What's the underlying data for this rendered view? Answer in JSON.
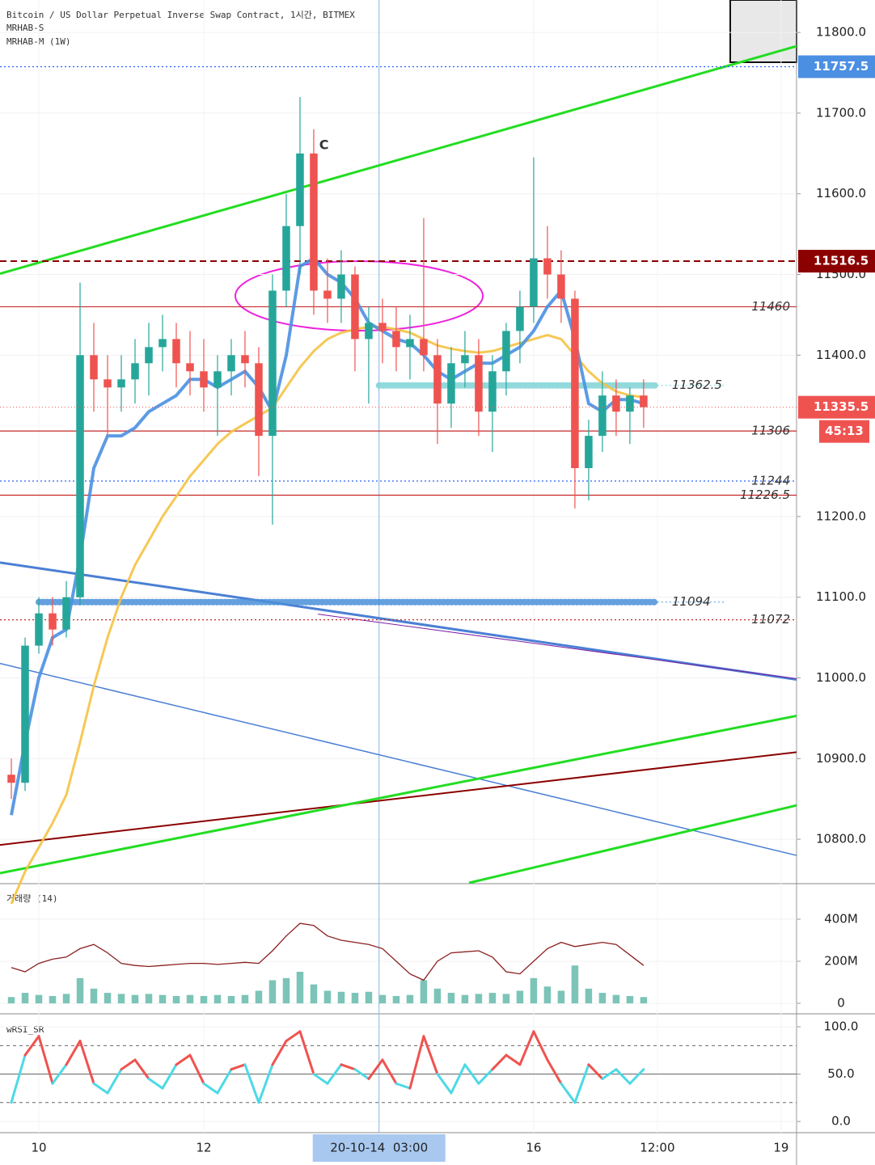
{
  "chart_data": [
    {
      "type": "candlestick",
      "title": "Bitcoin / US Dollar Perpetual Inverse Swap Contract, 1시간, BITMEX",
      "indicators": [
        "MRHAB-S",
        "MRHAB-M (1W)"
      ],
      "x": [
        -8,
        -4,
        0,
        4,
        8,
        12,
        16,
        20,
        24,
        28,
        32,
        36,
        40,
        44,
        48,
        52,
        56,
        60,
        64,
        68,
        72,
        76,
        80,
        84,
        88,
        92,
        96,
        100,
        104,
        108,
        112,
        116,
        120,
        124,
        128,
        132,
        136,
        140,
        144,
        148,
        152,
        156,
        160,
        164,
        168,
        172,
        176
      ],
      "ohlc": [
        [
          10880,
          10900,
          10850,
          10870
        ],
        [
          10870,
          11050,
          10860,
          11040
        ],
        [
          11040,
          11100,
          11030,
          11080
        ],
        [
          11080,
          11100,
          11040,
          11060
        ],
        [
          11060,
          11120,
          11050,
          11100
        ],
        [
          11100,
          11490,
          11090,
          11400
        ],
        [
          11400,
          11440,
          11330,
          11370
        ],
        [
          11370,
          11400,
          11300,
          11360
        ],
        [
          11360,
          11400,
          11330,
          11370
        ],
        [
          11370,
          11420,
          11340,
          11390
        ],
        [
          11390,
          11440,
          11350,
          11410
        ],
        [
          11410,
          11450,
          11380,
          11420
        ],
        [
          11420,
          11440,
          11360,
          11390
        ],
        [
          11390,
          11430,
          11350,
          11380
        ],
        [
          11380,
          11420,
          11330,
          11360
        ],
        [
          11360,
          11400,
          11300,
          11380
        ],
        [
          11380,
          11420,
          11350,
          11400
        ],
        [
          11400,
          11430,
          11360,
          11390
        ],
        [
          11390,
          11410,
          11250,
          11300
        ],
        [
          11300,
          11500,
          11190,
          11480
        ],
        [
          11480,
          11600,
          11460,
          11560
        ],
        [
          11560,
          11720,
          11500,
          11650
        ],
        [
          11650,
          11680,
          11450,
          11480
        ],
        [
          11480,
          11520,
          11440,
          11470
        ],
        [
          11470,
          11530,
          11440,
          11500
        ],
        [
          11500,
          11510,
          11380,
          11420
        ],
        [
          11420,
          11460,
          11340,
          11440
        ],
        [
          11440,
          11470,
          11390,
          11430
        ],
        [
          11430,
          11460,
          11380,
          11410
        ],
        [
          11410,
          11450,
          11370,
          11420
        ],
        [
          11420,
          11570,
          11380,
          11400
        ],
        [
          11400,
          11420,
          11290,
          11340
        ],
        [
          11340,
          11410,
          11310,
          11390
        ],
        [
          11390,
          11430,
          11360,
          11400
        ],
        [
          11400,
          11420,
          11300,
          11330
        ],
        [
          11330,
          11400,
          11280,
          11380
        ],
        [
          11380,
          11440,
          11350,
          11430
        ],
        [
          11430,
          11480,
          11390,
          11460
        ],
        [
          11460,
          11645,
          11440,
          11520
        ],
        [
          11520,
          11560,
          11470,
          11500
        ],
        [
          11500,
          11530,
          11440,
          11470
        ],
        [
          11470,
          11480,
          11210,
          11260
        ],
        [
          11260,
          11320,
          11220,
          11300
        ],
        [
          11300,
          11380,
          11280,
          11350
        ],
        [
          11350,
          11370,
          11300,
          11330
        ],
        [
          11330,
          11360,
          11290,
          11350
        ],
        [
          11350,
          11370,
          11310,
          11335.5
        ]
      ],
      "up_color": "#26a69a",
      "down_color": "#ef5350",
      "series": [
        {
          "color": "#f5c242",
          "width": 3,
          "values": [
            10720,
            10760,
            10790,
            10820,
            10855,
            10920,
            10990,
            11050,
            11100,
            11140,
            11170,
            11200,
            11225,
            11250,
            11270,
            11290,
            11305,
            11315,
            11325,
            11335,
            11360,
            11385,
            11405,
            11420,
            11428,
            11432,
            11435,
            11435,
            11432,
            11428,
            11420,
            11412,
            11408,
            11405,
            11403,
            11405,
            11410,
            11415,
            11420,
            11425,
            11420,
            11400,
            11380,
            11365,
            11355,
            11350,
            11348
          ]
        },
        {
          "color": "#4a90e2",
          "width": 4,
          "values": [
            10830,
            10920,
            11000,
            11050,
            11060,
            11150,
            11260,
            11300,
            11300,
            11310,
            11330,
            11340,
            11350,
            11370,
            11370,
            11360,
            11370,
            11380,
            11360,
            11330,
            11400,
            11510,
            11520,
            11500,
            11490,
            11470,
            11440,
            11430,
            11420,
            11415,
            11400,
            11380,
            11370,
            11380,
            11390,
            11390,
            11400,
            11410,
            11430,
            11460,
            11480,
            11420,
            11340,
            11330,
            11345,
            11345,
            11340
          ]
        }
      ],
      "xlim": [
        -11.3,
        220.5
      ],
      "xticks": [
        {
          "value": 0,
          "label": "10"
        },
        {
          "value": 48,
          "label": "12"
        },
        {
          "value": 144,
          "label": "16"
        },
        {
          "value": 180,
          "label": "12:00"
        },
        {
          "value": 216,
          "label": "19"
        }
      ],
      "crosshair": {
        "value": 99,
        "label": "20-10-14  03:00"
      },
      "ylim": [
        10746,
        11840.2
      ],
      "yticks": [
        {
          "value": 10800,
          "label": "10800.0"
        },
        {
          "value": 10900,
          "label": "10900.0"
        },
        {
          "value": 11000,
          "label": "11000.0"
        },
        {
          "value": 11100,
          "label": "11100.0"
        },
        {
          "value": 11200,
          "label": "11200.0"
        },
        {
          "value": 11400,
          "label": "11400.0"
        },
        {
          "value": 11500,
          "label": "11500.0"
        },
        {
          "value": 11600,
          "label": "11600.0"
        },
        {
          "value": 11700,
          "label": "11700.0"
        },
        {
          "value": 11800,
          "label": "11800.0"
        }
      ],
      "levels": [
        {
          "value": 11757.5,
          "color": "#2962ff",
          "style": "dotted",
          "tag": "axis",
          "tag_color": "#4b8fe2"
        },
        {
          "value": 11516.5,
          "color": "#8b0000",
          "style": "dashed",
          "tag": "axis",
          "tag_color": "#8b0000"
        },
        {
          "value": 11460,
          "color": "#c62828",
          "style": "solid",
          "tag": "chart"
        },
        {
          "value": 11362.5,
          "color": "#7fd3d6",
          "style": "thick",
          "from": 99,
          "to": 180,
          "tag": "chart"
        },
        {
          "value": 11306,
          "color": "#c62828",
          "style": "solid",
          "tag": "chart"
        },
        {
          "value": 11244,
          "color": "#2962ff",
          "style": "dotted",
          "tag": "chart"
        },
        {
          "value": 11226.5,
          "color": "#c62828",
          "style": "solid",
          "tag": "chart"
        },
        {
          "value": 11094,
          "color": "#4a90d9",
          "style": "thick",
          "from": 0,
          "to": 180,
          "tag": "chart"
        },
        {
          "value": 11072,
          "color": "#c62828",
          "style": "dotted",
          "tag": "chart"
        }
      ],
      "last": 11335.5,
      "last_color": "#ef5350",
      "countdown": "45:13",
      "trendlines": [
        {
          "x1": -11.3,
          "y1": 11501,
          "x2": 220.5,
          "y2": 11783,
          "color": "#22dd22",
          "width": 3
        },
        {
          "x1": -11.3,
          "y1": 11143,
          "x2": 220.5,
          "y2": 10998,
          "color": "#4a7fd4",
          "width": 3
        },
        {
          "x1": -11.3,
          "y1": 11018,
          "x2": 220.5,
          "y2": 10780,
          "color": "#4a7fd4",
          "width": 1.5
        },
        {
          "x1": -11.3,
          "y1": 10793,
          "x2": 220.5,
          "y2": 10908,
          "color": "#8b0000",
          "width": 2
        },
        {
          "x1": -11.3,
          "y1": 10758,
          "x2": 220.5,
          "y2": 10953,
          "color": "#22dd22",
          "width": 3
        },
        {
          "x1": 125.2,
          "y1": 10746,
          "x2": 220.5,
          "y2": 10842,
          "color": "#22dd22",
          "width": 3
        },
        {
          "x1": 81.2,
          "y1": 11079,
          "x2": 220.5,
          "y2": 10999,
          "color": "#7b1fa2",
          "width": 1
        }
      ],
      "annotations": [
        {
          "text": "C",
          "x": 81.6,
          "y": 11660
        }
      ]
    },
    {
      "type": "bar",
      "title": "거래량 (14)",
      "values": [
        30000000,
        50000000,
        40000000,
        35000000,
        45000000,
        120000000,
        70000000,
        50000000,
        45000000,
        40000000,
        45000000,
        40000000,
        35000000,
        40000000,
        35000000,
        40000000,
        35000000,
        40000000,
        60000000,
        110000000,
        120000000,
        150000000,
        90000000,
        60000000,
        55000000,
        50000000,
        55000000,
        40000000,
        35000000,
        40000000,
        110000000,
        70000000,
        50000000,
        40000000,
        45000000,
        50000000,
        45000000,
        60000000,
        120000000,
        80000000,
        60000000,
        180000000,
        70000000,
        50000000,
        40000000,
        35000000,
        30000000
      ],
      "color": "#7cc4b8",
      "line": {
        "color": "#8b2020",
        "values": [
          170000000,
          150000000,
          190000000,
          210000000,
          220000000,
          260000000,
          280000000,
          240000000,
          190000000,
          180000000,
          175000000,
          180000000,
          185000000,
          190000000,
          190000000,
          185000000,
          190000000,
          195000000,
          190000000,
          250000000,
          320000000,
          380000000,
          370000000,
          320000000,
          300000000,
          290000000,
          280000000,
          260000000,
          200000000,
          140000000,
          110000000,
          200000000,
          240000000,
          245000000,
          250000000,
          220000000,
          150000000,
          140000000,
          200000000,
          260000000,
          290000000,
          270000000,
          280000000,
          290000000,
          280000000,
          230000000,
          180000000
        ]
      },
      "ylim": [
        -42000000,
        561000000
      ],
      "yticks": [
        {
          "value": 400000000,
          "label": "400M"
        },
        {
          "value": 200000000,
          "label": "200M"
        },
        0
      ]
    },
    {
      "type": "line",
      "title": "wRSI_SR",
      "values": [
        20,
        70,
        90,
        40,
        60,
        85,
        40,
        30,
        55,
        65,
        45,
        35,
        60,
        70,
        40,
        30,
        55,
        60,
        20,
        60,
        85,
        95,
        50,
        40,
        60,
        55,
        45,
        65,
        40,
        35,
        90,
        50,
        30,
        60,
        40,
        55,
        70,
        60,
        95,
        65,
        40,
        20,
        60,
        45,
        55,
        40,
        55
      ],
      "color_above": "#ef5350",
      "color_below": "#4dd9e6",
      "levels": [
        80,
        50,
        20
      ],
      "ylim": [
        -11,
        112.8
      ],
      "yticks": [
        {
          "value": 100,
          "label": "100.0"
        },
        {
          "value": 50,
          "label": "50.0"
        },
        {
          "value": 0,
          "label": "0.0"
        }
      ]
    }
  ]
}
